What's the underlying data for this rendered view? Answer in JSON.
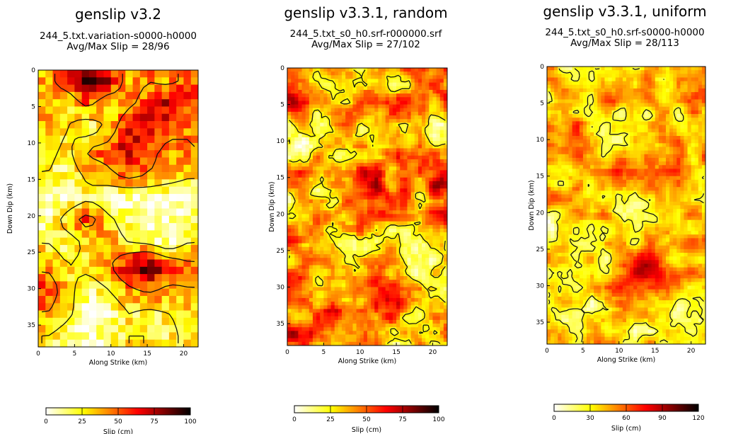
{
  "chart_data": [
    {
      "type": "heatmap",
      "title": "genslip v3.2",
      "subtitle": "244_5.txt.variation-s0000-h0000",
      "stats": "Avg/Max Slip = 28/96",
      "xlabel": "Along Strike (km)",
      "ylabel": "Down Dip (km)",
      "xlim": [
        0,
        22
      ],
      "ylim": [
        0,
        38
      ],
      "xticks": [
        "0",
        "5",
        "10",
        "15",
        "20"
      ],
      "yticks": [
        "0",
        "5",
        "10",
        "15",
        "20",
        "25",
        "30",
        "35"
      ],
      "colorbar": {
        "label": "Slip (cm)",
        "vmin": 0,
        "vmax": 100,
        "ticks": [
          "0",
          "25",
          "50",
          "75",
          "100"
        ]
      },
      "resolution": "coarse",
      "slip_grid_approx": [
        [
          40,
          55,
          85,
          70,
          35,
          45,
          40,
          50
        ],
        [
          40,
          30,
          50,
          25,
          40,
          55,
          75,
          55
        ],
        [
          35,
          25,
          10,
          30,
          65,
          70,
          50,
          45
        ],
        [
          30,
          20,
          50,
          55,
          70,
          50,
          40,
          45
        ],
        [
          25,
          15,
          30,
          40,
          55,
          45,
          40,
          30
        ],
        [
          5,
          10,
          20,
          10,
          5,
          10,
          5,
          5
        ],
        [
          10,
          35,
          55,
          30,
          15,
          5,
          5,
          10
        ],
        [
          25,
          15,
          30,
          35,
          25,
          20,
          10,
          25
        ],
        [
          40,
          25,
          30,
          40,
          70,
          90,
          65,
          50
        ],
        [
          60,
          30,
          15,
          25,
          40,
          50,
          40,
          45
        ],
        [
          45,
          30,
          10,
          10,
          25,
          20,
          25,
          30
        ],
        [
          25,
          15,
          10,
          15,
          25,
          25,
          20,
          30
        ]
      ]
    },
    {
      "type": "heatmap",
      "title": "genslip v3.3.1, random",
      "subtitle": "244_5.txt_s0_h0.srf-r000000.srf",
      "stats": "Avg/Max Slip = 27/102",
      "xlabel": "Along Strike (km)",
      "ylabel": "Down Dip (km)",
      "xlim": [
        0,
        22
      ],
      "ylim": [
        0,
        38
      ],
      "xticks": [
        "0",
        "5",
        "10",
        "15",
        "20"
      ],
      "yticks": [
        "0",
        "5",
        "10",
        "15",
        "20",
        "25",
        "30",
        "35"
      ],
      "colorbar": {
        "label": "Slip (cm)",
        "vmin": 0,
        "vmax": 100,
        "ticks": [
          "0",
          "25",
          "50",
          "75",
          "100"
        ]
      },
      "resolution": "fine",
      "slip_grid_approx": [
        [
          45,
          40,
          30,
          35,
          40,
          30,
          40,
          55
        ],
        [
          60,
          55,
          40,
          45,
          50,
          45,
          35,
          50
        ],
        [
          20,
          10,
          50,
          40,
          30,
          35,
          20,
          10
        ],
        [
          10,
          25,
          15,
          30,
          40,
          45,
          30,
          40
        ],
        [
          50,
          40,
          35,
          45,
          60,
          50,
          45,
          60
        ],
        [
          25,
          15,
          35,
          50,
          75,
          50,
          35,
          50
        ],
        [
          45,
          35,
          40,
          45,
          55,
          40,
          45,
          65
        ],
        [
          70,
          30,
          15,
          25,
          15,
          30,
          20,
          40
        ],
        [
          40,
          25,
          20,
          10,
          35,
          45,
          15,
          30
        ],
        [
          50,
          45,
          25,
          40,
          40,
          55,
          30,
          25
        ],
        [
          30,
          55,
          60,
          50,
          55,
          45,
          25,
          35
        ],
        [
          60,
          45,
          30,
          50,
          55,
          20,
          40,
          40
        ]
      ]
    },
    {
      "type": "heatmap",
      "title": "genslip v3.3.1, uniform",
      "subtitle": "244_5.txt_s0_h0.srf-s0000-h0000",
      "stats": "Avg/Max Slip = 28/113",
      "xlabel": "Along Strike (km)",
      "ylabel": "Down Dip (km)",
      "xlim": [
        0,
        22
      ],
      "ylim": [
        0,
        38
      ],
      "xticks": [
        "0",
        "5",
        "10",
        "15",
        "20"
      ],
      "yticks": [
        "0",
        "5",
        "10",
        "15",
        "20",
        "25",
        "30",
        "35"
      ],
      "colorbar": {
        "label": "Slip (cm)",
        "vmin": 0,
        "vmax": 120,
        "ticks": [
          "0",
          "30",
          "60",
          "90",
          "120"
        ]
      },
      "resolution": "fine",
      "slip_grid_approx": [
        [
          40,
          15,
          45,
          30,
          40,
          35,
          40,
          50
        ],
        [
          40,
          30,
          40,
          55,
          40,
          45,
          35,
          50
        ],
        [
          50,
          60,
          40,
          35,
          25,
          40,
          30,
          45
        ],
        [
          45,
          70,
          45,
          30,
          20,
          35,
          45,
          55
        ],
        [
          40,
          35,
          50,
          55,
          40,
          45,
          60,
          40
        ],
        [
          55,
          40,
          45,
          20,
          35,
          40,
          30,
          45
        ],
        [
          30,
          40,
          50,
          40,
          30,
          15,
          25,
          45
        ],
        [
          15,
          20,
          20,
          30,
          40,
          35,
          45,
          50
        ],
        [
          40,
          35,
          30,
          45,
          80,
          75,
          50,
          40
        ],
        [
          35,
          40,
          45,
          50,
          70,
          55,
          45,
          40
        ],
        [
          30,
          15,
          25,
          35,
          40,
          35,
          25,
          30
        ],
        [
          40,
          35,
          45,
          40,
          30,
          35,
          40,
          35
        ]
      ]
    }
  ]
}
